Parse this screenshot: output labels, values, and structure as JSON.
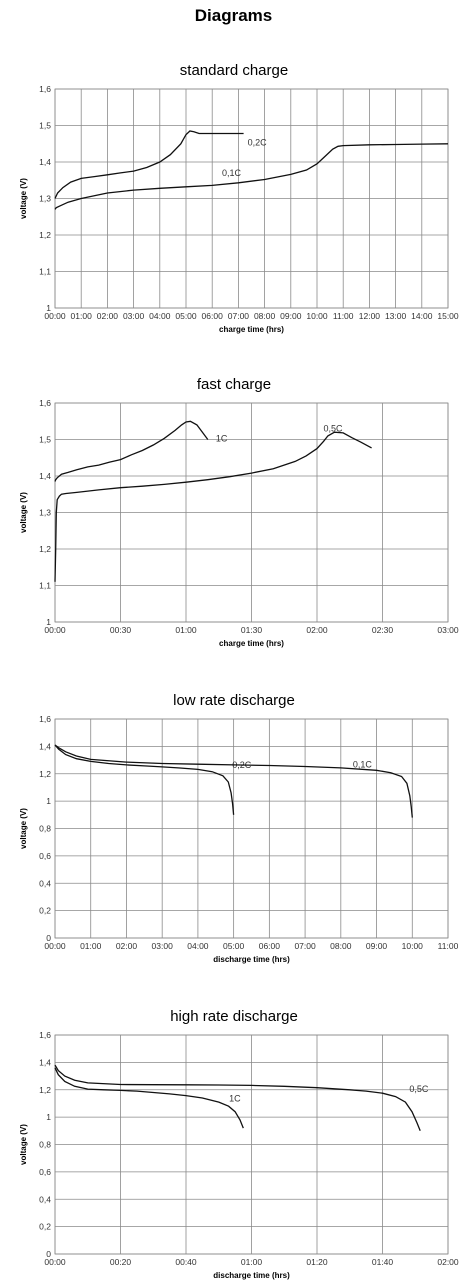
{
  "page": {
    "heading": "Diagrams"
  },
  "chart_data": [
    {
      "type": "line",
      "title": "standard charge",
      "xlabel": "charge time (hrs)",
      "ylabel": "voltage (V)",
      "xlim": [
        0,
        15
      ],
      "ylim": [
        1,
        1.6
      ],
      "x_ticks": [
        0,
        1,
        2,
        3,
        4,
        5,
        6,
        7,
        8,
        9,
        10,
        11,
        12,
        13,
        14,
        15
      ],
      "x_tick_labels": [
        "00:00",
        "01:00",
        "02:00",
        "03:00",
        "04:00",
        "05:00",
        "06:00",
        "07:00",
        "08:00",
        "09:00",
        "10:00",
        "11:00",
        "12:00",
        "13:00",
        "14:00",
        "15:00"
      ],
      "y_ticks": [
        1,
        1.1,
        1.2,
        1.3,
        1.4,
        1.5,
        1.6
      ],
      "y_tick_labels": [
        "1",
        "1,1",
        "1,2",
        "1,3",
        "1,4",
        "1,5",
        "1,6"
      ],
      "grid": true,
      "series": [
        {
          "name": "0,2C",
          "x": [
            0,
            0.1,
            0.3,
            0.6,
            1,
            1.5,
            2,
            2.5,
            3,
            3.5,
            4,
            4.4,
            4.8,
            5,
            5.15,
            5.3,
            5.5,
            5.8,
            6.5,
            7.2
          ],
          "y": [
            1.3,
            1.315,
            1.33,
            1.345,
            1.355,
            1.36,
            1.365,
            1.37,
            1.375,
            1.385,
            1.4,
            1.42,
            1.45,
            1.475,
            1.485,
            1.483,
            1.478,
            1.478,
            1.478,
            1.478
          ]
        },
        {
          "name": "0,1C",
          "x": [
            0,
            0.05,
            0.2,
            0.5,
            1,
            2,
            3,
            4,
            5,
            6,
            7,
            8,
            9,
            9.6,
            10,
            10.3,
            10.6,
            10.8,
            11,
            12,
            13,
            14,
            15
          ],
          "y": [
            1.27,
            1.275,
            1.28,
            1.29,
            1.3,
            1.315,
            1.323,
            1.328,
            1.332,
            1.336,
            1.343,
            1.352,
            1.366,
            1.378,
            1.395,
            1.415,
            1.435,
            1.443,
            1.445,
            1.447,
            1.448,
            1.449,
            1.45
          ]
        }
      ],
      "annotations": [
        "0,2C",
        "0,1C"
      ]
    },
    {
      "type": "line",
      "title": "fast charge",
      "xlabel": "charge time (hrs)",
      "ylabel": "voltage (V)",
      "xlim": [
        0,
        180
      ],
      "ylim": [
        1,
        1.6
      ],
      "x_ticks": [
        0,
        30,
        60,
        90,
        120,
        150,
        180
      ],
      "x_tick_labels": [
        "00:00",
        "00:30",
        "01:00",
        "01:30",
        "02:00",
        "02:30",
        "03:00"
      ],
      "y_ticks": [
        1,
        1.1,
        1.2,
        1.3,
        1.4,
        1.5,
        1.6
      ],
      "y_tick_labels": [
        "1",
        "1,1",
        "1,2",
        "1,3",
        "1,4",
        "1,5",
        "1,6"
      ],
      "grid": true,
      "series": [
        {
          "name": "1C",
          "x": [
            0,
            0.3,
            1,
            3,
            6,
            10,
            15,
            20,
            25,
            30,
            35,
            40,
            45,
            50,
            55,
            58,
            60,
            62,
            65,
            70
          ],
          "y": [
            1.385,
            1.39,
            1.395,
            1.405,
            1.41,
            1.417,
            1.425,
            1.43,
            1.438,
            1.445,
            1.458,
            1.47,
            1.485,
            1.503,
            1.525,
            1.54,
            1.548,
            1.55,
            1.54,
            1.5
          ]
        },
        {
          "name": "0,5C",
          "x": [
            0,
            0.3,
            0.6,
            1,
            2,
            3,
            5,
            10,
            20,
            30,
            40,
            50,
            60,
            70,
            80,
            90,
            100,
            110,
            115,
            120,
            123,
            125,
            128,
            132,
            136,
            140,
            145
          ],
          "y": [
            1.11,
            1.2,
            1.3,
            1.335,
            1.345,
            1.35,
            1.352,
            1.355,
            1.362,
            1.368,
            1.372,
            1.377,
            1.383,
            1.39,
            1.398,
            1.408,
            1.42,
            1.44,
            1.455,
            1.475,
            1.495,
            1.51,
            1.52,
            1.518,
            1.505,
            1.493,
            1.477
          ]
        }
      ],
      "annotations": [
        "1C",
        "0,5C"
      ]
    },
    {
      "type": "line",
      "title": "low rate discharge",
      "xlabel": "discharge time (hrs)",
      "ylabel": "voltage (V)",
      "xlim": [
        0,
        11
      ],
      "ylim": [
        0,
        1.6
      ],
      "x_ticks": [
        0,
        1,
        2,
        3,
        4,
        5,
        6,
        7,
        8,
        9,
        10,
        11
      ],
      "x_tick_labels": [
        "00:00",
        "01:00",
        "02:00",
        "03:00",
        "04:00",
        "05:00",
        "06:00",
        "07:00",
        "08:00",
        "09:00",
        "10:00",
        "11:00"
      ],
      "y_ticks": [
        0,
        0.2,
        0.4,
        0.6,
        0.8,
        1,
        1.2,
        1.4,
        1.6
      ],
      "y_tick_labels": [
        "0",
        "0,2",
        "0,4",
        "0,6",
        "0,8",
        "1",
        "1,2",
        "1,4",
        "1,6"
      ],
      "grid": true,
      "series": [
        {
          "name": "0,2C",
          "x": [
            0,
            0.1,
            0.3,
            0.6,
            1,
            1.5,
            2,
            2.5,
            3,
            3.5,
            4,
            4.4,
            4.7,
            4.85,
            4.93,
            4.97,
            5.0
          ],
          "y": [
            1.41,
            1.38,
            1.34,
            1.31,
            1.29,
            1.275,
            1.265,
            1.257,
            1.25,
            1.242,
            1.232,
            1.215,
            1.185,
            1.14,
            1.06,
            0.98,
            0.9
          ]
        },
        {
          "name": "0,1C",
          "x": [
            0,
            0.1,
            0.3,
            0.6,
            1,
            2,
            3,
            4,
            5,
            6,
            7,
            8,
            9,
            9.4,
            9.7,
            9.85,
            9.93,
            9.97,
            10.0
          ],
          "y": [
            1.41,
            1.39,
            1.36,
            1.33,
            1.305,
            1.285,
            1.275,
            1.27,
            1.265,
            1.26,
            1.253,
            1.243,
            1.225,
            1.208,
            1.18,
            1.13,
            1.04,
            0.96,
            0.88
          ]
        }
      ],
      "annotations": [
        "0,2C",
        "0,1C"
      ]
    },
    {
      "type": "line",
      "title": "high rate discharge",
      "xlabel": "discharge time (hrs)",
      "ylabel": "voltage (V)",
      "xlim": [
        0,
        120
      ],
      "ylim": [
        0,
        1.6
      ],
      "x_ticks": [
        0,
        20,
        40,
        60,
        80,
        100,
        120
      ],
      "x_tick_labels": [
        "00:00",
        "00:20",
        "00:40",
        "01:00",
        "01:20",
        "01:40",
        "02:00"
      ],
      "y_ticks": [
        0,
        0.2,
        0.4,
        0.6,
        0.8,
        1,
        1.2,
        1.4,
        1.6
      ],
      "y_tick_labels": [
        "0",
        "0,2",
        "0,4",
        "0,6",
        "0,8",
        "1",
        "1,2",
        "1,4",
        "1,6"
      ],
      "grid": true,
      "series": [
        {
          "name": "1C",
          "x": [
            0,
            1,
            3,
            6,
            10,
            15,
            20,
            25,
            30,
            35,
            40,
            45,
            50,
            53,
            55,
            56.5,
            57.5
          ],
          "y": [
            1.36,
            1.31,
            1.26,
            1.225,
            1.205,
            1.2,
            1.195,
            1.19,
            1.18,
            1.17,
            1.157,
            1.14,
            1.11,
            1.08,
            1.04,
            0.98,
            0.92
          ]
        },
        {
          "name": "0,5C",
          "x": [
            0,
            1,
            3,
            6,
            10,
            20,
            30,
            40,
            50,
            60,
            70,
            80,
            90,
            95,
            100,
            104,
            107,
            109,
            110.5,
            111.5
          ],
          "y": [
            1.38,
            1.34,
            1.3,
            1.27,
            1.25,
            1.238,
            1.237,
            1.236,
            1.235,
            1.232,
            1.225,
            1.215,
            1.2,
            1.19,
            1.175,
            1.15,
            1.11,
            1.04,
            0.96,
            0.9
          ]
        }
      ],
      "annotations": [
        "1C",
        "0,5C"
      ]
    }
  ]
}
